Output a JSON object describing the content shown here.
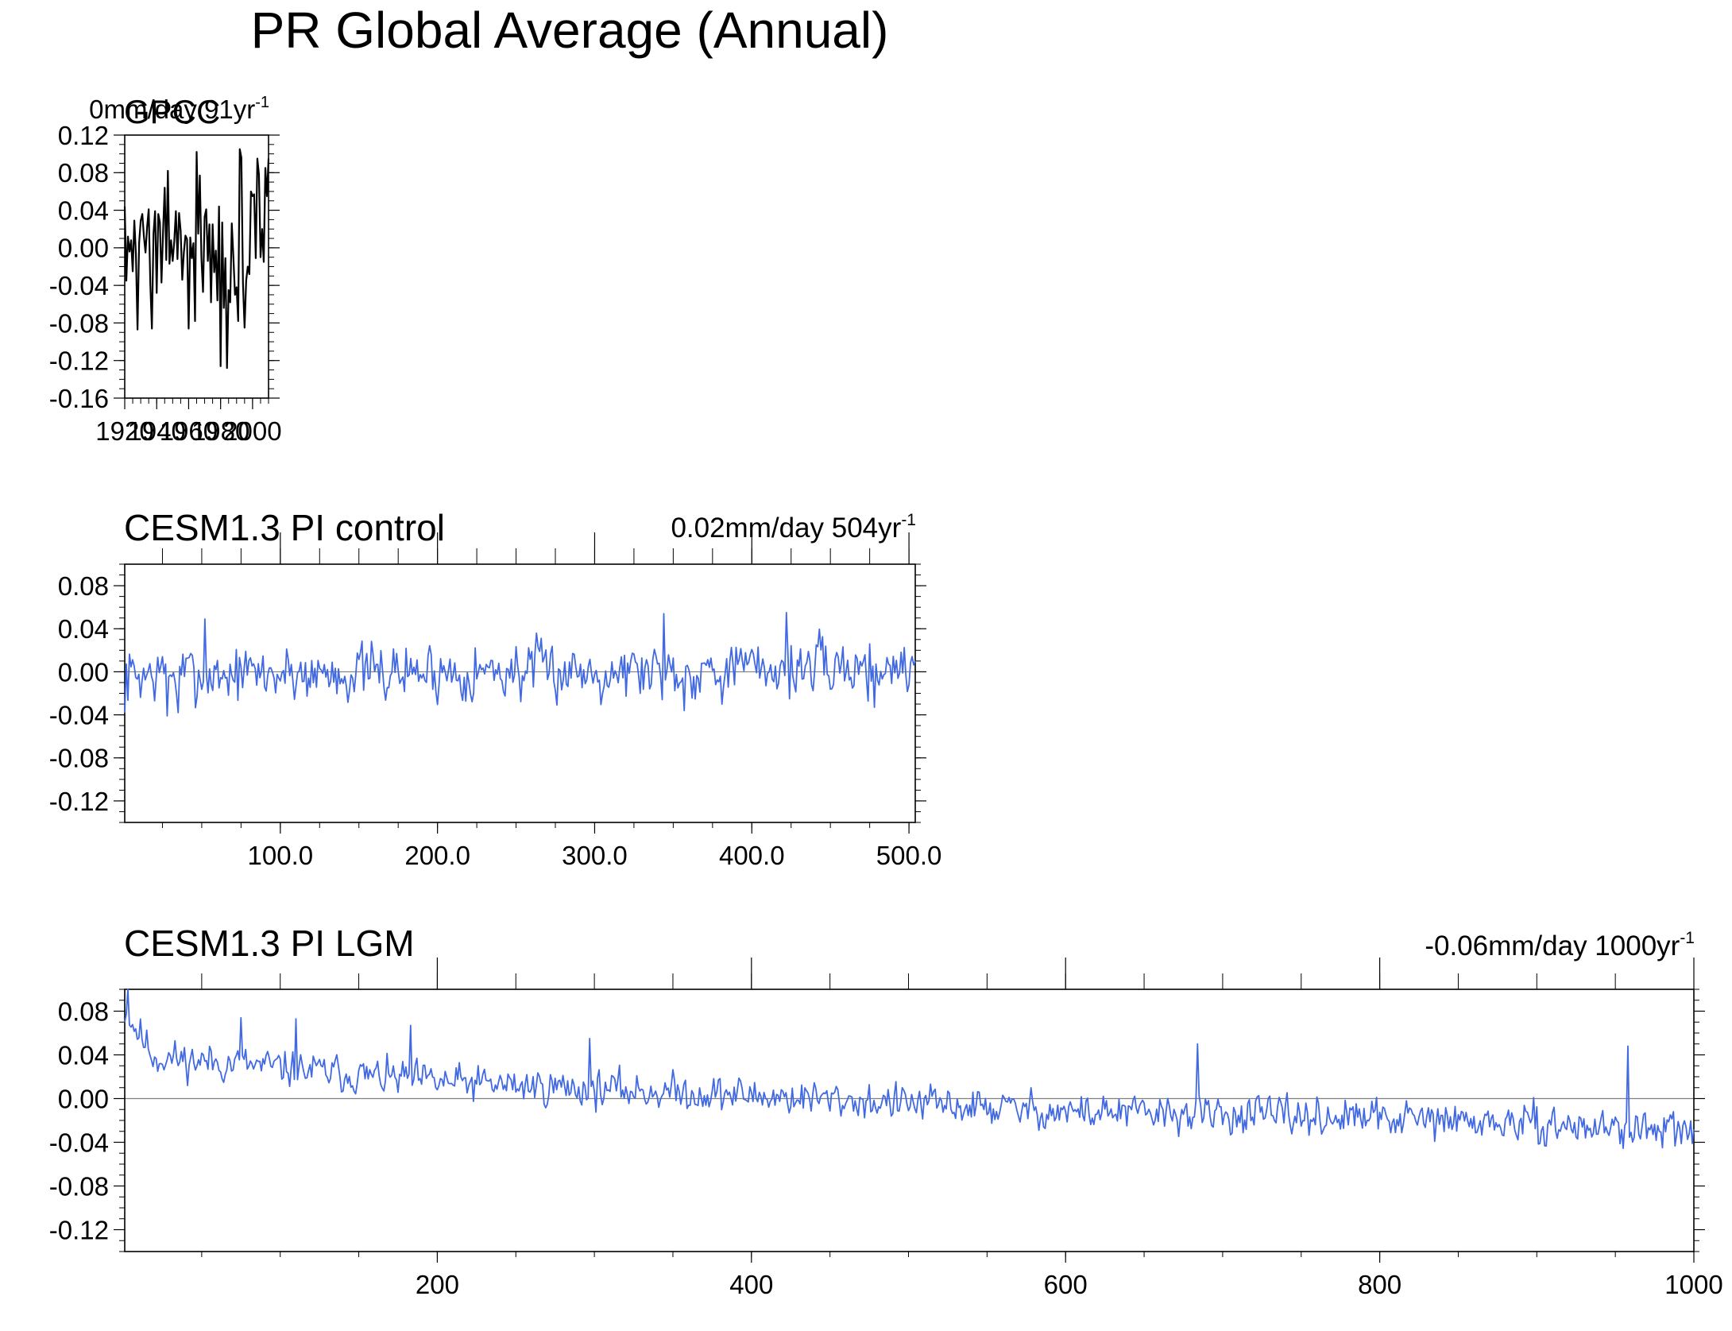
{
  "figure": {
    "title": "PR Global Average (Annual)"
  },
  "colors": {
    "observation_line": "#000000",
    "model_line": "#4169e1",
    "axis": "#000000",
    "zero_line": "#7f7f7f"
  },
  "chart_data": [
    {
      "type": "line",
      "title": "GPCC",
      "annotation": "0mm/day 91yr",
      "annotation_superscript": "-1",
      "xlabel": "",
      "ylabel": "",
      "xlim": [
        1920,
        2010
      ],
      "ylim": [
        -0.16,
        0.12
      ],
      "yticks": [
        "0.12",
        "0.08",
        "0.04",
        "0.00",
        "-0.04",
        "-0.08",
        "-0.12",
        "-0.16"
      ],
      "xticks": [
        "1920",
        "1940",
        "1960",
        "1980",
        "2000"
      ],
      "zero_line": false,
      "grid": false,
      "series": [
        {
          "color": "#000000",
          "x_start": 1920,
          "x_step": 1,
          "values": [
            0.044,
            -0.035,
            0.012,
            -0.004,
            0.008,
            -0.025,
            0.029,
            -0.007,
            -0.087,
            0.005,
            0.029,
            0.036,
            0.012,
            -0.005,
            0.022,
            0.041,
            -0.038,
            -0.086,
            0.015,
            0.039,
            -0.048,
            0.036,
            0.027,
            -0.037,
            0.018,
            0.064,
            -0.013,
            0.082,
            -0.017,
            0.008,
            -0.014,
            0.007,
            0.039,
            -0.012,
            0.037,
            0.018,
            -0.034,
            -0.005,
            0.013,
            0.009,
            -0.086,
            0.011,
            -0.011,
            0.005,
            -0.078,
            0.102,
            0.015,
            0.077,
            -0.011,
            -0.047,
            0.033,
            0.041,
            -0.014,
            0.025,
            -0.058,
            0.025,
            -0.026,
            -0.003,
            -0.056,
            0.044,
            -0.126,
            0.027,
            -0.064,
            -0.011,
            -0.128,
            -0.045,
            -0.058,
            0.026,
            -0.01,
            -0.05,
            -0.042,
            -0.078,
            0.105,
            0.096,
            -0.038,
            -0.085,
            -0.035,
            -0.02,
            -0.028,
            0.06,
            0.055,
            0.057,
            -0.011,
            0.095,
            0.078,
            -0.01,
            0.02,
            -0.015,
            0.085,
            0.055,
            0.095
          ]
        }
      ]
    },
    {
      "type": "line",
      "title": "CESM1.3 PI control",
      "annotation": "0.02mm/day 504yr",
      "annotation_superscript": "-1",
      "xlabel": "",
      "ylabel": "",
      "xlim": [
        1,
        504
      ],
      "ylim": [
        -0.14,
        0.1
      ],
      "yticks": [
        "0.08",
        "0.04",
        "0.00",
        "-0.04",
        "-0.08",
        "-0.12"
      ],
      "xticks": [
        "100.0",
        "200.0",
        "300.0",
        "400.0",
        "500.0"
      ],
      "zero_line": true,
      "grid": false,
      "series": [
        {
          "color": "#4169e1",
          "x_start": 1,
          "x_step": 1,
          "generated_from": {
            "seed": 7,
            "noise": 0.016,
            "trend": [
              [
                1,
                -0.003
              ],
              [
                504,
                0.005
              ]
            ],
            "spikes": [
              [
                1,
                -0.038
              ],
              [
                52,
                0.049
              ],
              [
                344,
                0.054
              ],
              [
                422,
                0.055
              ],
              [
                357,
                -0.036
              ],
              [
                478,
                -0.033
              ],
              [
                28,
                -0.041
              ],
              [
                35,
                -0.038
              ]
            ]
          }
        }
      ]
    },
    {
      "type": "line",
      "title": "CESM1.3 PI LGM",
      "annotation": "-0.06mm/day 1000yr",
      "annotation_superscript": "-1",
      "xlabel": "",
      "ylabel": "",
      "xlim": [
        1,
        1000
      ],
      "ylim": [
        -0.14,
        0.1
      ],
      "yticks": [
        "0.08",
        "0.04",
        "0.00",
        "-0.04",
        "-0.08",
        "-0.12"
      ],
      "xticks": [
        "200",
        "400",
        "600",
        "800",
        "1000"
      ],
      "zero_line": true,
      "grid": false,
      "series": [
        {
          "color": "#4169e1",
          "x_start": 1,
          "x_step": 1,
          "generated_from": {
            "seed": 11,
            "noise": 0.01,
            "trend": [
              [
                1,
                0.08
              ],
              [
                20,
                0.038
              ],
              [
                200,
                0.015
              ],
              [
                400,
                0.003
              ],
              [
                600,
                -0.012
              ],
              [
                800,
                -0.018
              ],
              [
                1000,
                -0.03
              ]
            ],
            "spikes": [
              [
                3,
                0.1
              ],
              [
                75,
                0.074
              ],
              [
                110,
                0.073
              ],
              [
                183,
                0.067
              ],
              [
                297,
                0.055
              ],
              [
                684,
                0.05
              ],
              [
                958,
                0.048
              ],
              [
                980,
                -0.045
              ]
            ]
          }
        }
      ]
    }
  ]
}
